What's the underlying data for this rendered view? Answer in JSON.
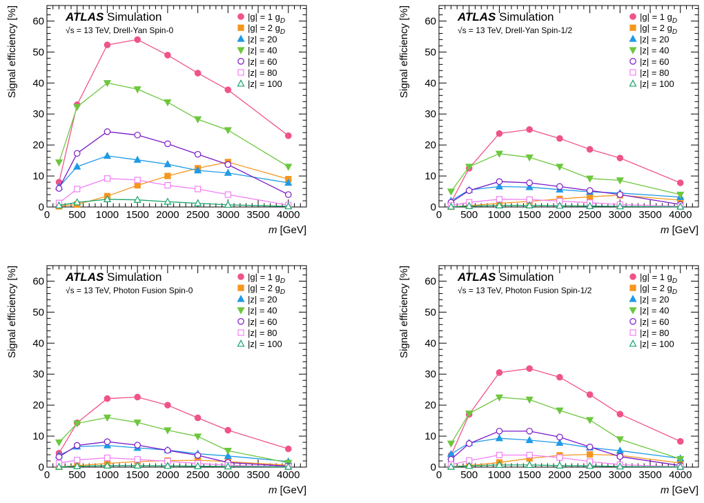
{
  "figure": {
    "experiment": "ATLAS",
    "label": "Simulation"
  },
  "legend_entries": [
    {
      "text": "|g| = 1 g",
      "sub": "D",
      "marker": "circle",
      "filled": true,
      "color": "#f0538a"
    },
    {
      "text": "|g| = 2 g",
      "sub": "D",
      "marker": "square",
      "filled": true,
      "color": "#f5961e"
    },
    {
      "text": "|z| = 20",
      "sub": "",
      "marker": "triangle-up",
      "filled": true,
      "color": "#1f9ae6"
    },
    {
      "text": "|z| = 40",
      "sub": "",
      "marker": "triangle-down",
      "filled": true,
      "color": "#6dc73e"
    },
    {
      "text": "|z| = 60",
      "sub": "",
      "marker": "circle",
      "filled": false,
      "color": "#7a17c8"
    },
    {
      "text": "|z| = 80",
      "sub": "",
      "marker": "square",
      "filled": false,
      "color": "#f27ff5"
    },
    {
      "text": "|z| = 100",
      "sub": "",
      "marker": "triangle-up",
      "filled": false,
      "color": "#19a36b"
    }
  ],
  "chart_data": [
    {
      "type": "line",
      "title": "√s = 13 TeV, Drell-Yan Spin-0",
      "xlabel": "m [GeV]",
      "ylabel": "Signal efficiency [%]",
      "xlim": [
        0,
        4300
      ],
      "ylim": [
        0,
        65
      ],
      "xticks": [
        0,
        500,
        1000,
        1500,
        2000,
        2500,
        3000,
        3500,
        4000
      ],
      "yticks": [
        0,
        10,
        20,
        30,
        40,
        50,
        60
      ],
      "x": [
        200,
        500,
        1000,
        1500,
        2000,
        2500,
        3000,
        4000
      ],
      "series": [
        {
          "name": "|g| = 1 gD",
          "values": [
            8,
            33,
            52.3,
            54,
            49,
            43.2,
            37.8,
            23
          ]
        },
        {
          "name": "|g| = 2 gD",
          "values": [
            0.2,
            0.8,
            3.5,
            7,
            10,
            12.5,
            14.5,
            9
          ]
        },
        {
          "name": "|z| = 20",
          "values": [
            6.5,
            13,
            16.5,
            15.2,
            13.8,
            11.8,
            11,
            7.8
          ]
        },
        {
          "name": "|z| = 40",
          "values": [
            14.4,
            32.3,
            40,
            38,
            33.8,
            28.3,
            24.8,
            13
          ]
        },
        {
          "name": "|z| = 60",
          "values": [
            6,
            17.3,
            24.3,
            23.2,
            20.4,
            17,
            13.7,
            4
          ]
        },
        {
          "name": "|z| = 80",
          "values": [
            1.3,
            5.8,
            9.2,
            8.7,
            7,
            5.8,
            4,
            0.6
          ]
        },
        {
          "name": "|z| = 100",
          "values": [
            0.5,
            1.5,
            2.5,
            2.3,
            1.7,
            1.2,
            0.7,
            0.2
          ]
        }
      ]
    },
    {
      "type": "line",
      "title": "√s = 13 TeV, Drell-Yan Spin-1/2",
      "xlabel": "m [GeV]",
      "ylabel": "Signal efficiency [%]",
      "xlim": [
        0,
        4300
      ],
      "ylim": [
        0,
        65
      ],
      "xticks": [
        0,
        500,
        1000,
        1500,
        2000,
        2500,
        3000,
        3500,
        4000
      ],
      "yticks": [
        0,
        10,
        20,
        30,
        40,
        50,
        60
      ],
      "x": [
        200,
        500,
        1000,
        1500,
        2000,
        2500,
        3000,
        4000
      ],
      "series": [
        {
          "name": "|g| = 1 gD",
          "values": [
            1.5,
            12.5,
            23.7,
            25,
            22.1,
            18.6,
            15.8,
            7.8
          ]
        },
        {
          "name": "|g| = 2 gD",
          "values": [
            0.1,
            0.4,
            1.2,
            1.8,
            2.6,
            3.3,
            3.8,
            2.2
          ]
        },
        {
          "name": "|z| = 20",
          "values": [
            2,
            5.5,
            6.6,
            6.4,
            5.6,
            4.9,
            4.5,
            3.2
          ]
        },
        {
          "name": "|z| = 40",
          "values": [
            5,
            13,
            17.2,
            16,
            13,
            9.2,
            8.6,
            4
          ]
        },
        {
          "name": "|z| = 60",
          "values": [
            1.5,
            5.3,
            8.2,
            7.8,
            6.6,
            5.3,
            4,
            0.8
          ]
        },
        {
          "name": "|z| = 80",
          "values": [
            0.5,
            1.5,
            2.5,
            2.4,
            1.9,
            1.4,
            0.8,
            0.2
          ]
        },
        {
          "name": "|z| = 100",
          "values": [
            0.1,
            0.3,
            0.5,
            0.5,
            0.4,
            0.3,
            0.2,
            0.1
          ]
        }
      ]
    },
    {
      "type": "line",
      "title": "√s = 13 TeV, Photon Fusion Spin-0",
      "xlabel": "m [GeV]",
      "ylabel": "Signal efficiency [%]",
      "xlim": [
        0,
        4300
      ],
      "ylim": [
        0,
        65
      ],
      "xticks": [
        0,
        500,
        1000,
        1500,
        2000,
        2500,
        3000,
        3500,
        4000
      ],
      "yticks": [
        0,
        10,
        20,
        30,
        40,
        50,
        60
      ],
      "x": [
        200,
        500,
        1000,
        1500,
        2000,
        2500,
        3000,
        4000
      ],
      "series": [
        {
          "name": "|g| = 1 gD",
          "values": [
            4.5,
            14.3,
            22.1,
            22.6,
            20,
            15.9,
            11.9,
            5.9
          ]
        },
        {
          "name": "|g| = 2 gD",
          "values": [
            0.1,
            0.5,
            1.2,
            1.8,
            2.1,
            2.2,
            1.8,
            0.6
          ]
        },
        {
          "name": "|z| = 20",
          "values": [
            3.8,
            6.6,
            7,
            6.2,
            5.5,
            4.3,
            3.6,
            1.8
          ]
        },
        {
          "name": "|z| = 40",
          "values": [
            8,
            14.1,
            16,
            14.4,
            11.9,
            9.9,
            5.3,
            1.4
          ]
        },
        {
          "name": "|z| = 60",
          "values": [
            3.3,
            7,
            8.2,
            7.1,
            5.4,
            3.8,
            1.5,
            0.3
          ]
        },
        {
          "name": "|z| = 80",
          "values": [
            1.3,
            2.3,
            3,
            2.5,
            1.9,
            1.2,
            0.6,
            0.1
          ]
        },
        {
          "name": "|z| = 100",
          "values": [
            0.1,
            0.3,
            0.5,
            0.5,
            0.4,
            0.3,
            0.2,
            0.1
          ]
        }
      ]
    },
    {
      "type": "line",
      "title": "√s = 13 TeV, Photon Fusion Spin-1/2",
      "xlabel": "m [GeV]",
      "ylabel": "Signal efficiency [%]",
      "xlim": [
        0,
        4300
      ],
      "ylim": [
        0,
        65
      ],
      "xticks": [
        0,
        500,
        1000,
        1500,
        2000,
        2500,
        3000,
        3500,
        4000
      ],
      "yticks": [
        0,
        10,
        20,
        30,
        40,
        50,
        60
      ],
      "x": [
        200,
        500,
        1000,
        1500,
        2000,
        2500,
        3000,
        4000
      ],
      "series": [
        {
          "name": "|g| = 1 gD",
          "values": [
            3.8,
            17,
            30.5,
            31.8,
            29,
            23.4,
            17.1,
            8.3
          ]
        },
        {
          "name": "|g| = 2 gD",
          "values": [
            0.2,
            0.5,
            1.5,
            2.8,
            3.8,
            4.1,
            3.8,
            1.3
          ]
        },
        {
          "name": "|z| = 20",
          "values": [
            4.2,
            7.8,
            9.3,
            8.7,
            7.8,
            6.3,
            5.3,
            2.8
          ]
        },
        {
          "name": "|z| = 40",
          "values": [
            7.6,
            17.3,
            22.5,
            21.8,
            18.3,
            15.2,
            9,
            2.6
          ]
        },
        {
          "name": "|z| = 60",
          "values": [
            2.5,
            7.6,
            11.6,
            11.6,
            9.7,
            6.5,
            3.4,
            0.5
          ]
        },
        {
          "name": "|z| = 80",
          "values": [
            0.8,
            2.1,
            3.9,
            3.9,
            3.1,
            1.8,
            0.8,
            0.1
          ]
        },
        {
          "name": "|z| = 100",
          "values": [
            0.1,
            0.4,
            0.7,
            0.7,
            0.5,
            0.4,
            0.2,
            0.1
          ]
        }
      ]
    }
  ]
}
